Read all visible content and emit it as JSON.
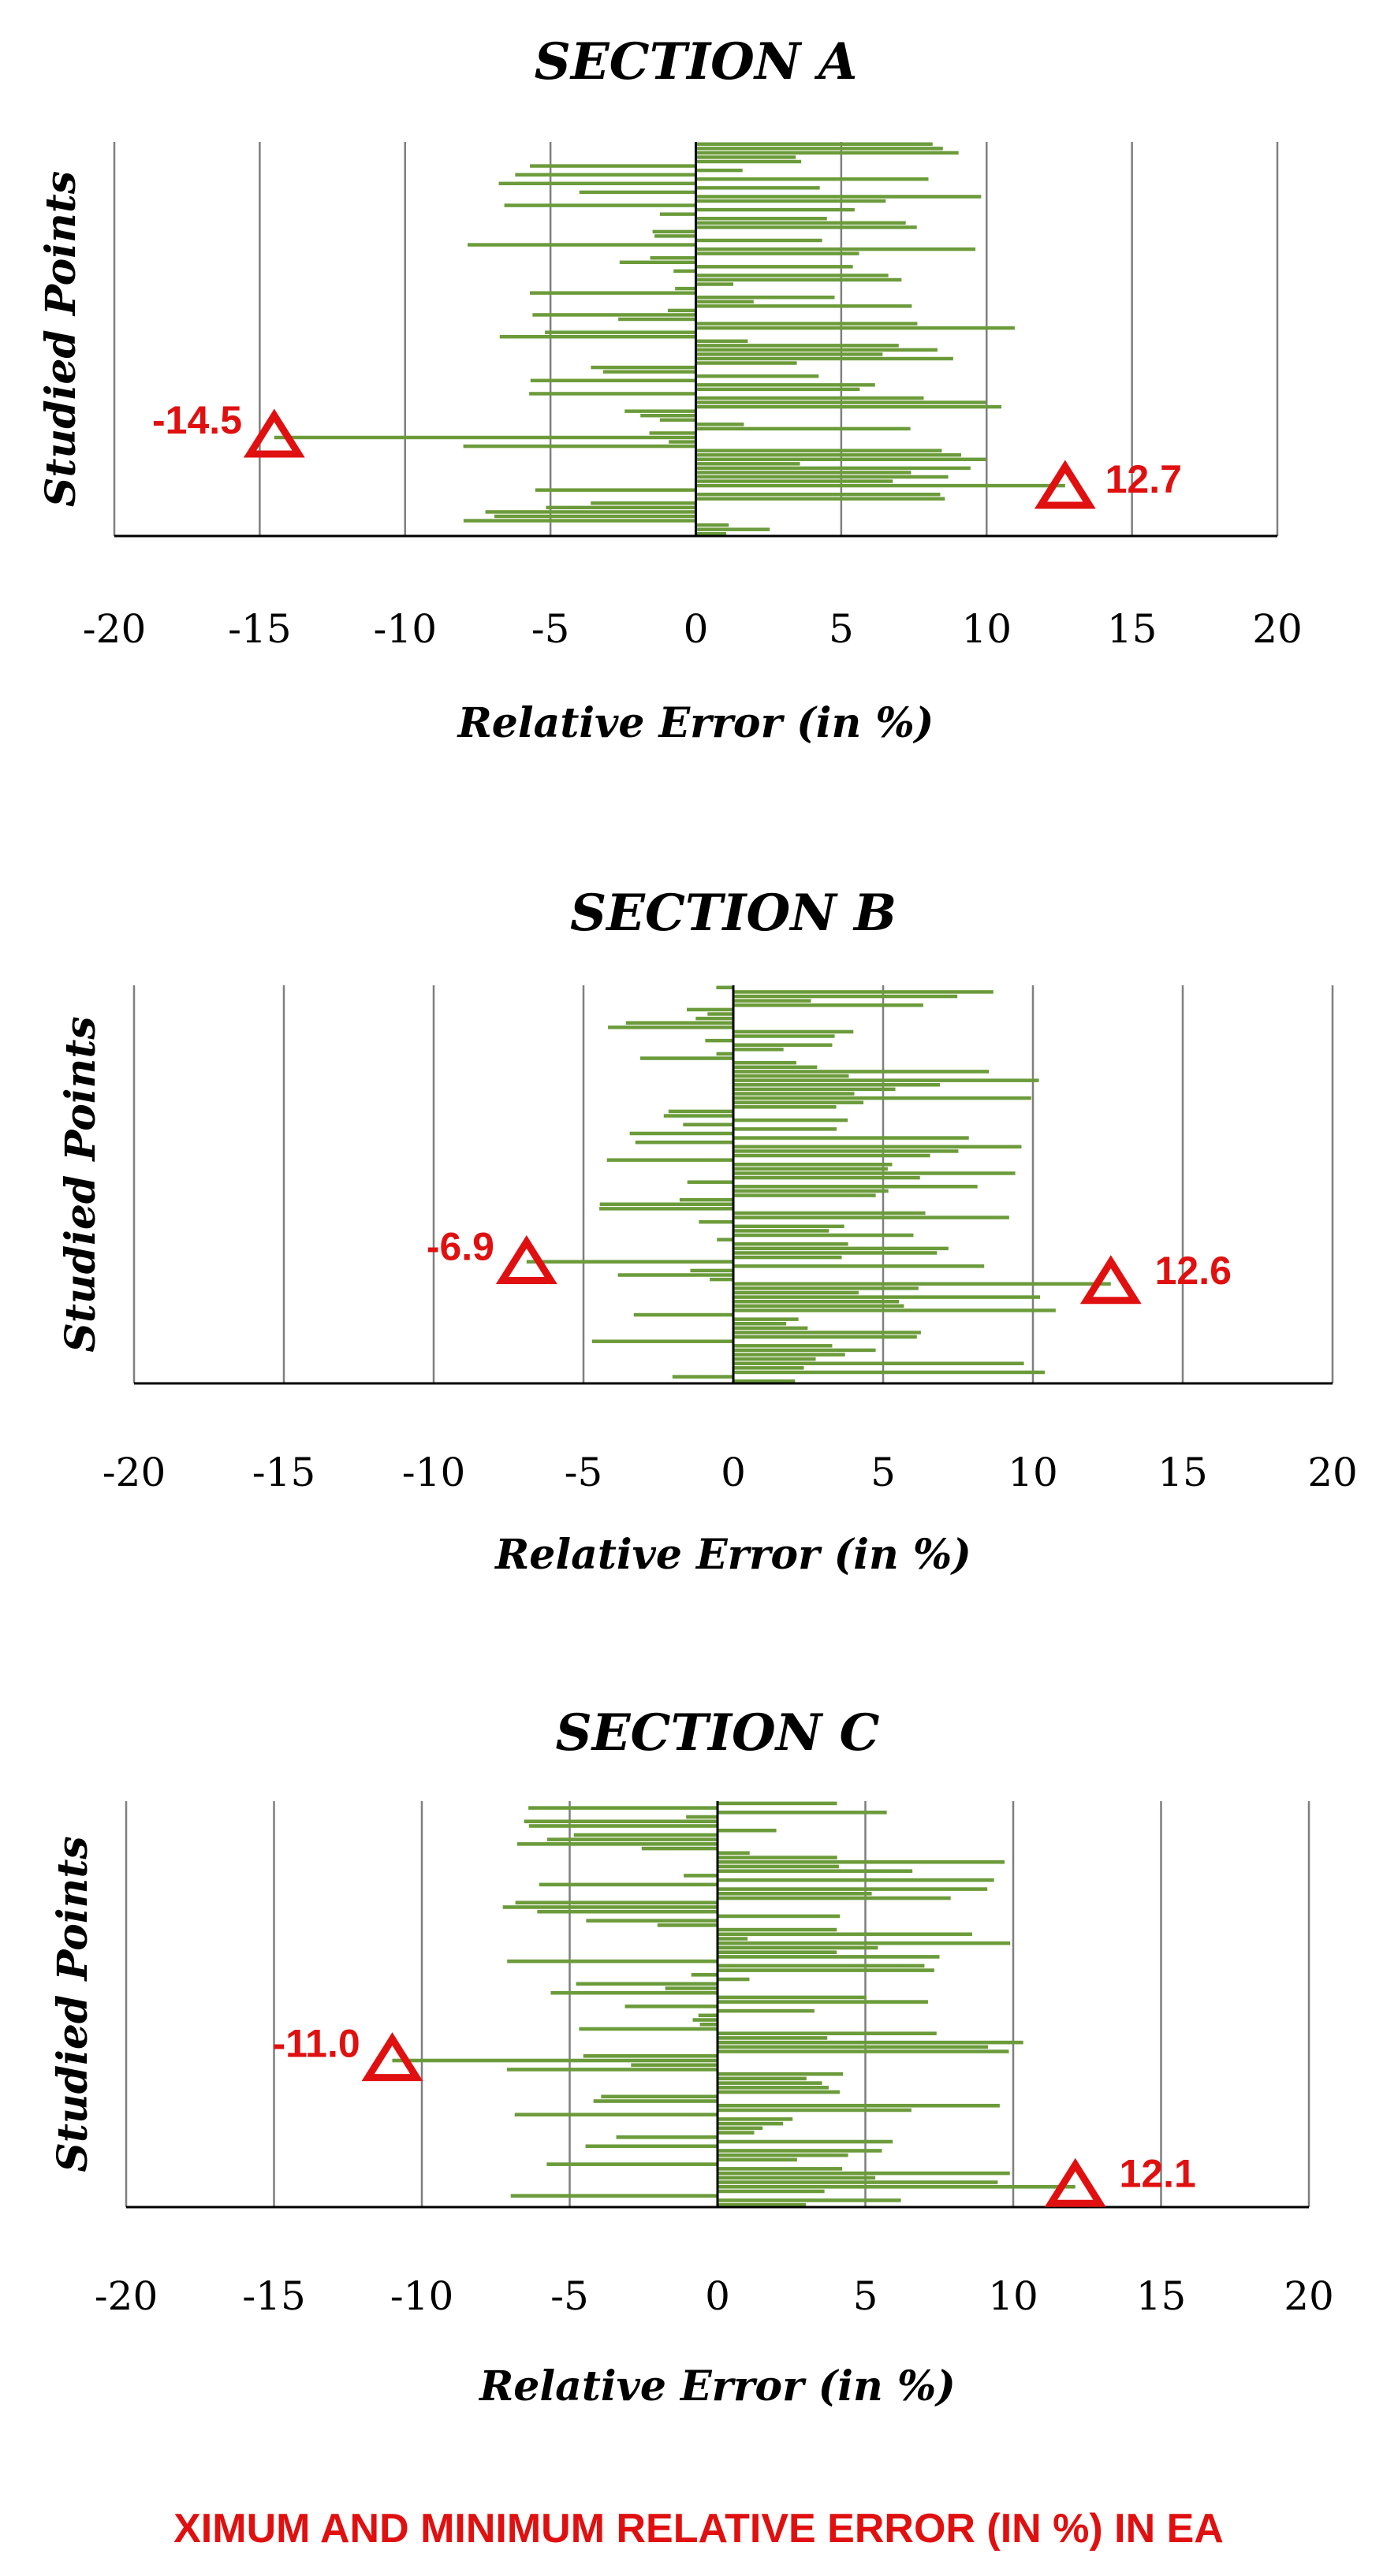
{
  "chart_data": [
    {
      "type": "bar",
      "orientation": "horizontal",
      "title": "SECTION A",
      "xlabel": "Relative Error (in %)",
      "ylabel": "Studied Points",
      "xlim": [
        -20,
        20
      ],
      "xticks": [
        "-20",
        "-15",
        "-10",
        "-5",
        "0",
        "5",
        "10",
        "15",
        "20"
      ],
      "grid": "vertical",
      "bar_color": "#6b9b3a",
      "num_points": 90,
      "min_error": -14.5,
      "max_error": 12.7,
      "min_label": "-14.5",
      "max_label": "12.7",
      "min_point_from_bottom": 0.25,
      "max_point_from_bottom": 0.12
    },
    {
      "type": "bar",
      "orientation": "horizontal",
      "title": "SECTION B",
      "xlabel": "Relative Error (in %)",
      "ylabel": "Studied Points",
      "xlim": [
        -20,
        20
      ],
      "xticks": [
        "-20",
        "-15",
        "-10",
        "-5",
        "0",
        "5",
        "10",
        "15",
        "20"
      ],
      "grid": "vertical",
      "bar_color": "#6b9b3a",
      "num_points": 90,
      "min_error": -6.9,
      "max_error": 12.6,
      "min_label": "-6.9",
      "max_label": "12.6",
      "min_point_from_bottom": 0.3,
      "max_point_from_bottom": 0.25
    },
    {
      "type": "bar",
      "orientation": "horizontal",
      "title": "SECTION C",
      "xlabel": "Relative Error (in %)",
      "ylabel": "Studied Points",
      "xlim": [
        -20,
        20
      ],
      "xticks": [
        "-20",
        "-15",
        "-10",
        "-5",
        "0",
        "5",
        "10",
        "15",
        "20"
      ],
      "grid": "vertical",
      "bar_color": "#6b9b3a",
      "num_points": 90,
      "min_error": -11.0,
      "max_error": 12.1,
      "min_label": "-11.0",
      "max_label": "12.1",
      "min_point_from_bottom": 0.36,
      "max_point_from_bottom": 0.05
    }
  ],
  "footer_caption": "XIMUM AND MINIMUM RELATIVE ERROR (IN %) IN EA",
  "colors": {
    "marker": "#e01010",
    "bars": "#6b9b3a",
    "caption": "#e01010"
  }
}
